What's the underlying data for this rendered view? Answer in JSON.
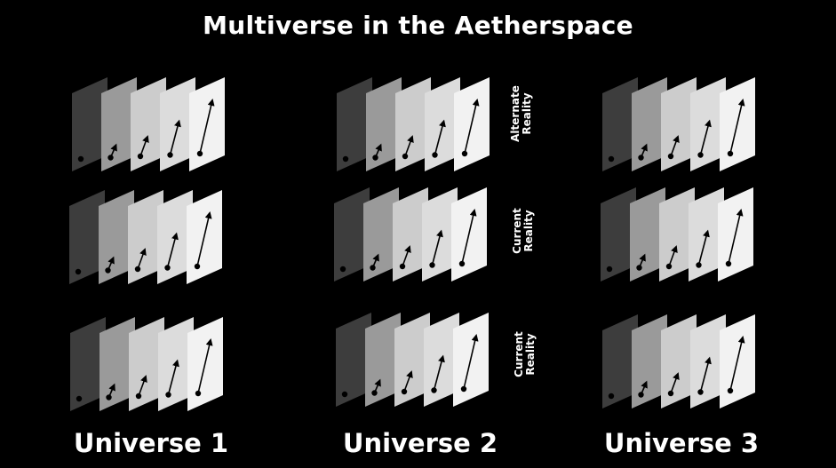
{
  "title": "Multiverse in the Aetherspace",
  "universes": [
    {
      "label": "Universe 1"
    },
    {
      "label": "Universe 2"
    },
    {
      "label": "Universe 3"
    }
  ],
  "row_labels": [
    {
      "line1": "Alternate",
      "line2": "Reality"
    },
    {
      "line1": "Current",
      "line2": "Reality"
    },
    {
      "line1": "Current",
      "line2": "Reality"
    }
  ],
  "colors": {
    "background": "#000000",
    "text": "#ffffff",
    "panel_shades": [
      "#3d3d3d",
      "#9a9a9a",
      "#cccccc",
      "#dcdcdc",
      "#f2f2f2"
    ],
    "vector": "#000000"
  },
  "icons": {
    "vector_marker": "dot-with-arrow"
  }
}
